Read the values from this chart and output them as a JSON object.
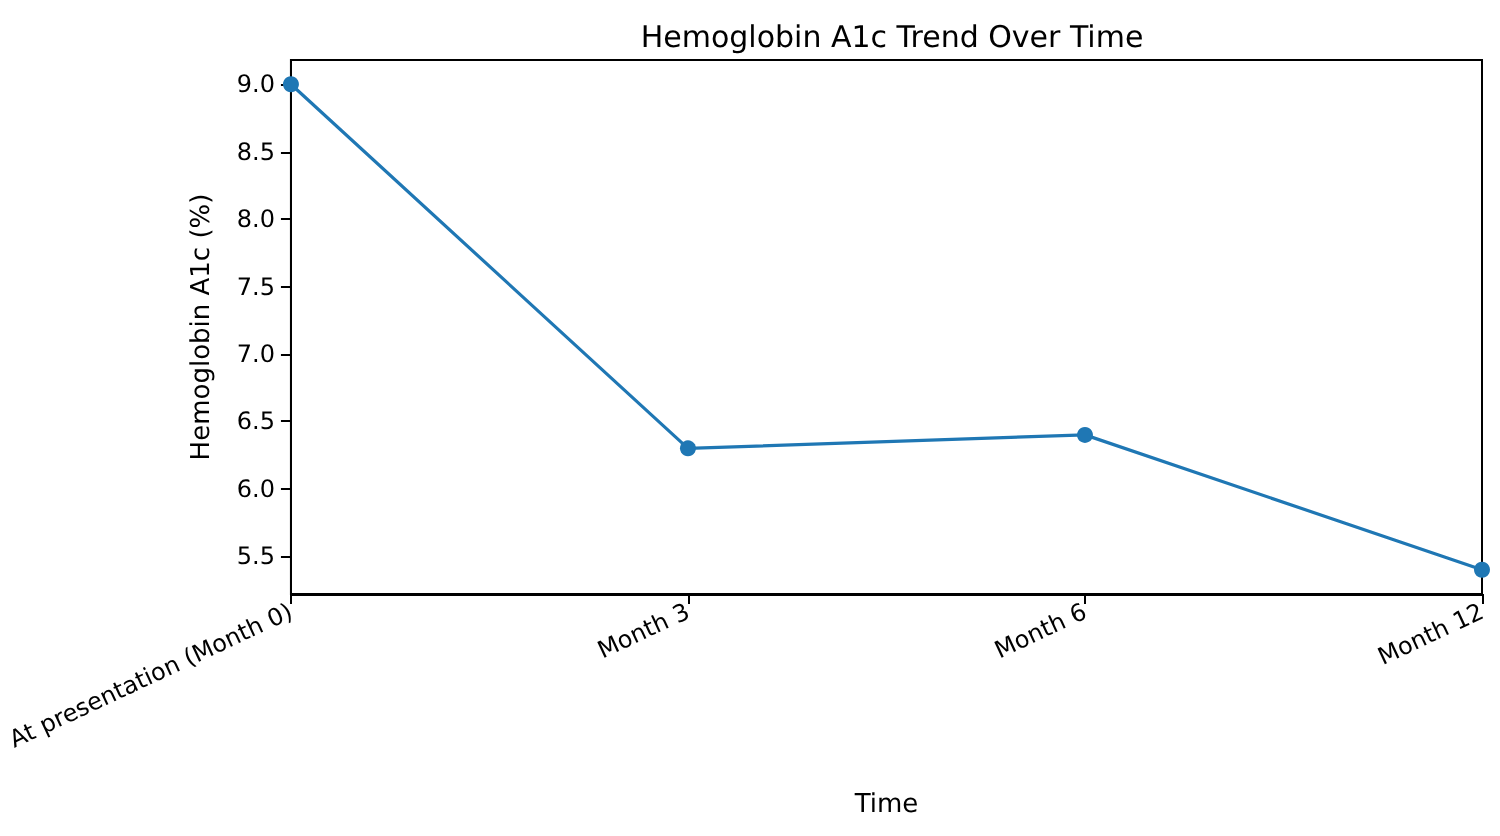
{
  "chart_data": {
    "type": "line",
    "title": "Hemoglobin A1c Trend Over Time",
    "xlabel": "Time",
    "ylabel": "Hemoglobin A1c (%)",
    "categories": [
      "At presentation (Month 0)",
      "Month 3",
      "Month 6",
      "Month 12"
    ],
    "series": [
      {
        "color": "#1f77b4",
        "values": [
          9.0,
          6.3,
          6.4,
          5.4
        ]
      }
    ],
    "ylim": [
      5.22,
      9.18
    ],
    "yticks": [
      {
        "value": 5.5,
        "label": "5.5"
      },
      {
        "value": 6,
        "label": "6.0"
      },
      {
        "value": 6.5,
        "label": "6.5"
      },
      {
        "value": 7,
        "label": "7.0"
      },
      {
        "value": 7.5,
        "label": "7.5"
      },
      {
        "value": 8,
        "label": "8.0"
      },
      {
        "value": 8.5,
        "label": "8.5"
      },
      {
        "value": 9,
        "label": "9.0"
      }
    ],
    "grid": false,
    "marker": "circle",
    "line_style": "solid"
  }
}
